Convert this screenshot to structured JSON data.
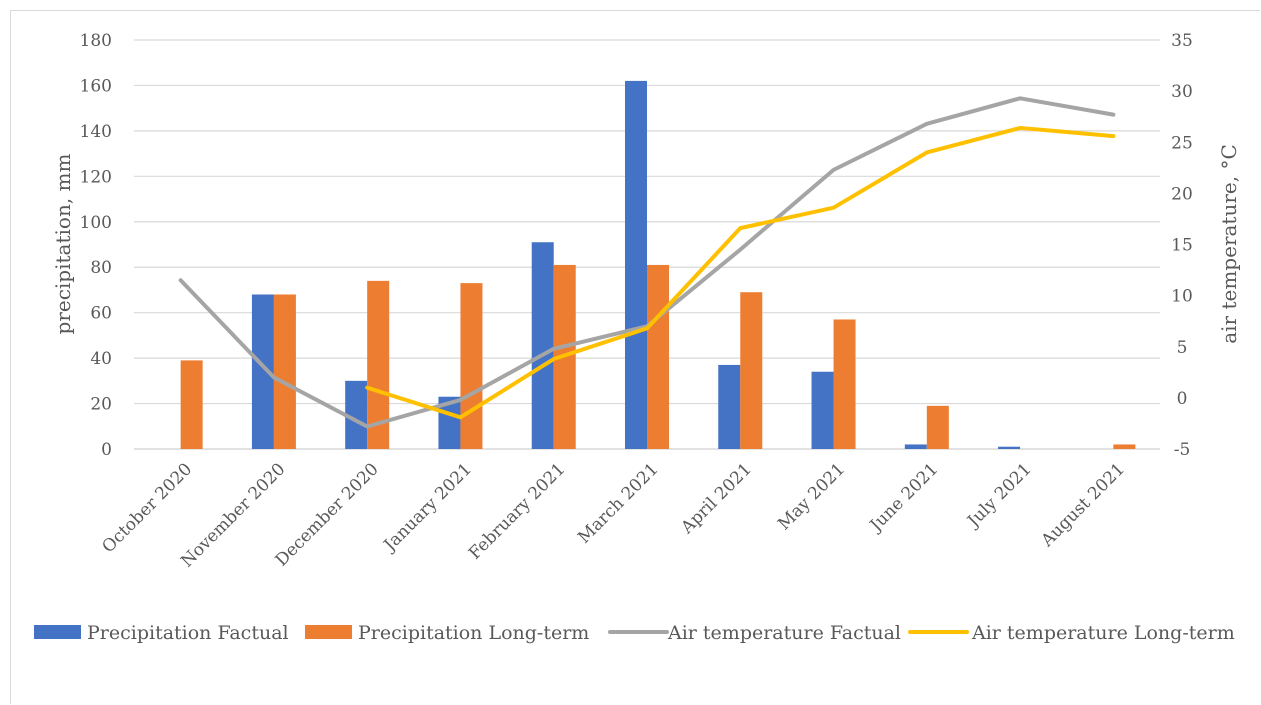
{
  "chart_data": {
    "type": "bar+line",
    "categories": [
      "October 2020",
      "November 2020",
      "December 2020",
      "January 2021",
      "February 2021",
      "March 2021",
      "April 2021",
      "May 2021",
      "June 2021",
      "July 2021",
      "August 2021"
    ],
    "ylabel_left": "precipitation, mm",
    "ylabel_right": "air temperature, °C",
    "ylim_left": [
      0,
      180
    ],
    "yticks_left": [
      0,
      20,
      40,
      60,
      80,
      100,
      120,
      140,
      160,
      180
    ],
    "ylim_right": [
      -5,
      35
    ],
    "yticks_right": [
      -5,
      0,
      5,
      10,
      15,
      20,
      25,
      30,
      35
    ],
    "grid": true,
    "legend_position": "bottom",
    "bar_series": [
      {
        "name": "Precipitation Factual",
        "color": "#4472C4",
        "values": [
          0,
          68,
          30,
          23,
          91,
          162,
          37,
          34,
          2,
          1,
          0
        ]
      },
      {
        "name": "Precipitation Long-term",
        "color": "#ED7D31",
        "values": [
          39,
          68,
          74,
          73,
          81,
          81,
          69,
          57,
          19,
          0,
          2
        ]
      }
    ],
    "line_series": [
      {
        "name": "Air temperature Factual",
        "color": "#A5A5A5",
        "values": [
          11.5,
          2.0,
          -2.8,
          -0.2,
          4.8,
          7.0,
          14.5,
          22.3,
          26.8,
          29.3,
          27.7
        ]
      },
      {
        "name": "Air temperature Long-term",
        "color": "#FFC000",
        "values": [
          null,
          null,
          1.0,
          -1.9,
          3.8,
          6.8,
          16.6,
          18.6,
          24.0,
          26.4,
          25.6
        ]
      }
    ]
  }
}
